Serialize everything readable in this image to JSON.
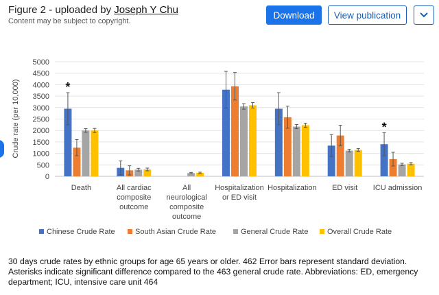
{
  "header": {
    "title_prefix": "Figure 2 - uploaded by",
    "author": "Joseph Y Chu",
    "copyright": "Content may be subject to copyright."
  },
  "buttons": {
    "download": "Download",
    "view_publication": "View publication"
  },
  "colors": {
    "chinese": "#4472c4",
    "south_asian": "#ed7d31",
    "general": "#a5a5a5",
    "overall": "#ffc000",
    "accent": "#1a73e8"
  },
  "chart_data": {
    "type": "bar",
    "title": "",
    "xlabel": "",
    "ylabel": "Crude rate (per 10,000)",
    "ylim": [
      0,
      5000
    ],
    "yticks": [
      "0",
      "500",
      "1000",
      "1500",
      "2000",
      "2500",
      "3000",
      "3500",
      "4000",
      "4500",
      "5000"
    ],
    "categories": [
      [
        "Death"
      ],
      [
        "All cardiac",
        "composite",
        "outcome"
      ],
      [
        "All",
        "neurological",
        "composite",
        "outcome"
      ],
      [
        "Hospitalization",
        "or ED visit"
      ],
      [
        "Hospitalization"
      ],
      [
        "ED visit"
      ],
      [
        "ICU admission"
      ]
    ],
    "series": [
      {
        "name": "Chinese Crude Rate",
        "color": "#4472c4",
        "values": [
          2950,
          370,
          0,
          3780,
          2950,
          1340,
          1400
        ],
        "errors": [
          700,
          300,
          0,
          800,
          700,
          480,
          500
        ]
      },
      {
        "name": "South Asian Crude Rate",
        "color": "#ed7d31",
        "values": [
          1250,
          260,
          0,
          3930,
          2580,
          1780,
          750
        ],
        "errors": [
          350,
          200,
          0,
          600,
          480,
          450,
          300
        ]
      },
      {
        "name": "General Crude Rate",
        "color": "#a5a5a5",
        "values": [
          2000,
          290,
          140,
          3050,
          2170,
          1120,
          520
        ],
        "errors": [
          80,
          60,
          30,
          120,
          90,
          60,
          50
        ]
      },
      {
        "name": "Overall Crude Rate",
        "color": "#ffc000",
        "values": [
          2000,
          300,
          150,
          3100,
          2230,
          1150,
          550
        ],
        "errors": [
          90,
          60,
          30,
          120,
          90,
          60,
          50
        ]
      }
    ],
    "significance_markers": [
      {
        "category_index": 0,
        "symbol": "*"
      },
      {
        "category_index": 6,
        "symbol": "*"
      }
    ]
  },
  "caption": "30 days crude rates by ethnic groups for age 65 years or older. 462 Error bars represent standard deviation. Asterisks indicate significant difference compared to the 463 general crude rate. Abbreviations: ED, emergency department; ICU, intensive care unit 464"
}
